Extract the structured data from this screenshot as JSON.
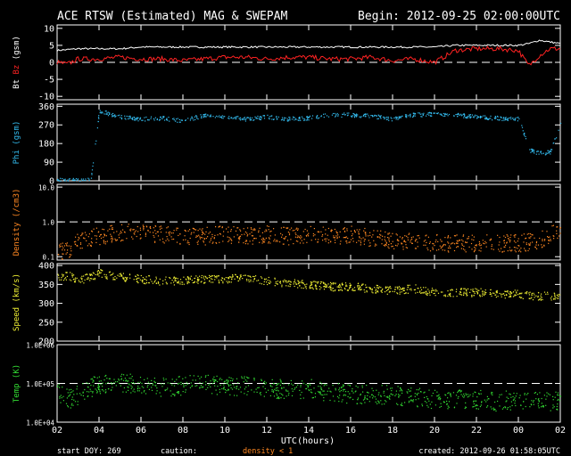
{
  "header": {
    "title": "ACE RTSW (Estimated) MAG & SWEPAM",
    "begin": "Begin: 2012-09-25 02:00:00UTC"
  },
  "footer": {
    "start_doy": "start DOY: 269",
    "caution": "caution:",
    "density_note": "density < 1",
    "created": "created: 2012-09-26 01:58:05UTC"
  },
  "xaxis": {
    "label": "UTC(hours)",
    "ticks": [
      "02",
      "04",
      "06",
      "08",
      "10",
      "12",
      "14",
      "16",
      "18",
      "20",
      "22",
      "00",
      "02"
    ]
  },
  "colors": {
    "bt": "#ffffff",
    "bz": "#ff2222",
    "phi": "#33bbee",
    "density": "#ff8822",
    "speed": "#eeee33",
    "temp": "#33dd33"
  },
  "chart_data": [
    {
      "type": "line",
      "panel": "mag",
      "ylabel_parts": [
        "Bt",
        "Bz",
        "(gsm)"
      ],
      "yticks": [
        "10",
        "5",
        "0",
        "-5",
        "-10"
      ],
      "ylim": [
        -11,
        11
      ],
      "reference_line": 0,
      "xlim_hours": [
        0,
        24
      ],
      "series": [
        {
          "name": "Bt",
          "x": [
            0,
            1,
            2,
            3,
            4,
            5,
            6,
            7,
            8,
            9,
            10,
            11,
            12,
            13,
            14,
            15,
            16,
            17,
            18,
            19,
            20,
            21,
            22,
            22.5,
            23,
            23.5,
            24
          ],
          "values": [
            3.5,
            4,
            4,
            4,
            4.5,
            4.5,
            4.5,
            4.5,
            4.5,
            4.5,
            4.5,
            4.5,
            4.5,
            4.5,
            4.5,
            4.5,
            4.5,
            4.5,
            4.5,
            5,
            5,
            5,
            5,
            5.5,
            6.5,
            6,
            5.5
          ]
        },
        {
          "name": "Bz",
          "x": [
            0,
            0.5,
            1,
            2,
            3,
            4,
            5,
            6,
            7,
            8,
            9,
            10,
            11,
            12,
            13,
            14,
            15,
            16,
            17,
            18,
            19,
            20,
            21,
            22,
            22.5,
            23,
            23.5,
            24
          ],
          "values": [
            0,
            -0.5,
            1,
            1,
            1.5,
            1,
            1,
            0.5,
            1,
            1.5,
            1.5,
            1,
            1.5,
            1.5,
            1,
            1,
            1.5,
            0.5,
            1,
            0,
            3.5,
            4,
            4,
            3.5,
            -1,
            2,
            4,
            4
          ]
        }
      ]
    },
    {
      "type": "scatter",
      "panel": "phi",
      "ylabel": "Phi (gsm)",
      "yticks": [
        "360",
        "270",
        "180",
        "90",
        "0"
      ],
      "ylim": [
        0,
        370
      ],
      "xlim_hours": [
        0,
        24
      ],
      "series": [
        {
          "name": "Phi",
          "x": [
            0.8,
            1,
            1.2,
            1.4,
            1.6,
            2,
            3,
            4,
            5,
            6,
            7,
            8,
            9,
            10,
            11,
            12,
            13,
            14,
            15,
            16,
            17,
            18,
            19,
            20,
            21,
            21.5,
            22,
            22.3,
            22.5,
            23,
            23.5,
            24
          ],
          "values": [
            5,
            8,
            5,
            7,
            6,
            340,
            310,
            300,
            305,
            290,
            320,
            310,
            300,
            310,
            300,
            305,
            320,
            320,
            315,
            300,
            320,
            325,
            320,
            310,
            305,
            300,
            300,
            220,
            150,
            135,
            140,
            270
          ]
        }
      ]
    },
    {
      "type": "scatter",
      "panel": "density",
      "ylabel": "Density (/cm3)",
      "yticks": [
        "10.0",
        "1.0",
        "0.1"
      ],
      "yscale": "log",
      "ylim": [
        0.08,
        12
      ],
      "reference_line": 1.0,
      "xlim_hours": [
        0,
        24
      ],
      "series": [
        {
          "name": "Density",
          "x": [
            0,
            0.5,
            1,
            2,
            3,
            4,
            5,
            6,
            7,
            8,
            9,
            10,
            11,
            12,
            13,
            14,
            15,
            16,
            17,
            18,
            19,
            20,
            21,
            22,
            23,
            24
          ],
          "values": [
            0.15,
            0.15,
            0.3,
            0.4,
            0.5,
            0.5,
            0.45,
            0.4,
            0.4,
            0.45,
            0.4,
            0.45,
            0.4,
            0.45,
            0.4,
            0.45,
            0.35,
            0.3,
            0.3,
            0.25,
            0.25,
            0.25,
            0.25,
            0.25,
            0.3,
            0.6
          ]
        }
      ]
    },
    {
      "type": "scatter",
      "panel": "speed",
      "ylabel": "Speed (km/s)",
      "yticks": [
        "400",
        "350",
        "300",
        "250",
        "200"
      ],
      "ylim": [
        200,
        405
      ],
      "xlim_hours": [
        0,
        24
      ],
      "series": [
        {
          "name": "Speed",
          "x": [
            0,
            0.5,
            1,
            2,
            3,
            4,
            5,
            6,
            7,
            8,
            9,
            10,
            11,
            12,
            13,
            14,
            15,
            16,
            17,
            18,
            19,
            20,
            21,
            22,
            23,
            24
          ],
          "values": [
            370,
            375,
            360,
            380,
            370,
            365,
            360,
            360,
            365,
            365,
            370,
            360,
            355,
            350,
            345,
            345,
            340,
            335,
            340,
            330,
            330,
            330,
            325,
            325,
            320,
            320
          ]
        }
      ]
    },
    {
      "type": "scatter",
      "panel": "temp",
      "ylabel": "Temp (K)",
      "yticks": [
        "1.0E+06",
        "1.0E+05",
        "1.0E+04"
      ],
      "yscale": "log",
      "ylim": [
        10000,
        1000000
      ],
      "reference_line": 100000,
      "xlim_hours": [
        0,
        24
      ],
      "series": [
        {
          "name": "Temp",
          "x": [
            0,
            0.5,
            1,
            2,
            3,
            4,
            5,
            6,
            7,
            8,
            9,
            10,
            11,
            12,
            13,
            14,
            15,
            16,
            17,
            18,
            19,
            20,
            21,
            22,
            23,
            24
          ],
          "values": [
            60000,
            40000,
            50000,
            100000,
            110000,
            90000,
            80000,
            90000,
            100000,
            85000,
            90000,
            80000,
            70000,
            75000,
            60000,
            55000,
            55000,
            50000,
            45000,
            40000,
            40000,
            40000,
            35000,
            40000,
            35000,
            35000
          ]
        }
      ]
    }
  ]
}
